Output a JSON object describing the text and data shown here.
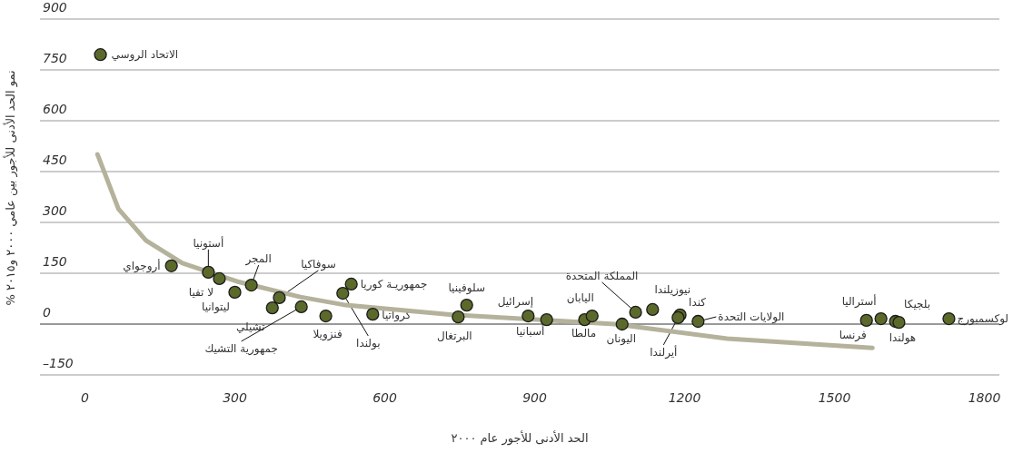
{
  "chart_data": {
    "type": "scatter",
    "xlabel": "الحد الأدنى للأجور عام ٢٠٠٠",
    "ylabel": "نمو الحد الأدنى للأجور بين عامي ٢٠٠٠ و٢٠١٥ %",
    "xlim": [
      -90,
      1830
    ],
    "ylim": [
      -150,
      900
    ],
    "xticks": [
      0,
      300,
      600,
      900,
      1200,
      1500,
      1800
    ],
    "yticks": [
      {
        "value": -150,
        "label": "–150"
      },
      0,
      150,
      300,
      450,
      600,
      750,
      900
    ],
    "grid": "y",
    "series": [
      {
        "marker": "circle",
        "color": "#5b6a2b",
        "x": [
          31,
          173,
          247,
          269,
          300,
          333,
          375,
          389,
          433,
          482,
          516,
          533,
          576,
          747,
          764,
          887,
          924,
          1000,
          1015,
          1075,
          1102,
          1136,
          1191,
          1187,
          1227,
          1564,
          1593,
          1622,
          1629,
          1729
        ],
        "values": [
          795,
          172,
          153,
          134,
          94,
          115,
          48,
          78,
          51,
          24,
          91,
          118,
          29,
          21,
          56,
          24,
          13,
          13,
          24,
          0,
          35,
          43,
          27,
          19,
          8,
          11,
          16,
          8,
          5,
          16
        ]
      },
      {
        "type": "line",
        "color": "#b5b29c",
        "x": [
          25,
          67,
          122,
          195,
          304,
          431,
          522,
          740,
          1060,
          1285,
          1576
        ],
        "values": [
          501,
          340,
          247,
          180,
          126,
          80,
          56,
          27,
          0,
          -43,
          -70
        ]
      }
    ],
    "annotations": [
      {
        "text": "الاتحاد الروسي",
        "x": 31,
        "y": 795
      },
      {
        "text": "أروجواي",
        "x": 173,
        "y": 172
      },
      {
        "text": "أستونيا",
        "x": 247,
        "y": 153
      },
      {
        "text": "لا تفيا",
        "x": 269,
        "y": 134
      },
      {
        "text": "ليتوانيا",
        "x": 300,
        "y": 94
      },
      {
        "text": "المجر",
        "x": 333,
        "y": 115
      },
      {
        "text": "تشيلي",
        "x": 375,
        "y": 48
      },
      {
        "text": "سوفاكيا",
        "x": 389,
        "y": 78
      },
      {
        "text": "جمهورية التشيك",
        "x": 433,
        "y": 51
      },
      {
        "text": "فنزويلا",
        "x": 482,
        "y": 24
      },
      {
        "text": "بولندا",
        "x": 516,
        "y": 91
      },
      {
        "text": "جمهوريـة كوريا",
        "x": 533,
        "y": 118
      },
      {
        "text": "كرواتيا",
        "x": 576,
        "y": 29
      },
      {
        "text": "البرتغال",
        "x": 747,
        "y": 21
      },
      {
        "text": "سلوفينيا",
        "x": 764,
        "y": 56
      },
      {
        "text": "إسرائيل",
        "x": 887,
        "y": 24
      },
      {
        "text": "أسبانيا",
        "x": 924,
        "y": 13
      },
      {
        "text": "مالطا",
        "x": 1000,
        "y": 13
      },
      {
        "text": "اليابان",
        "x": 1015,
        "y": 24
      },
      {
        "text": "اليونان",
        "x": 1075,
        "y": 0
      },
      {
        "text": "المملكة المتحدة",
        "x": 1102,
        "y": 35
      },
      {
        "text": "نيوزيلندا",
        "x": 1136,
        "y": 43
      },
      {
        "text": "كندا",
        "x": 1191,
        "y": 27
      },
      {
        "text": "أيرلندا",
        "x": 1187,
        "y": 19
      },
      {
        "text": "الولايات التحدة",
        "x": 1227,
        "y": 8
      },
      {
        "text": "فرنسا",
        "x": 1564,
        "y": 11
      },
      {
        "text": "أستراليا",
        "x": 1593,
        "y": 16
      },
      {
        "text": "بلجيكا",
        "x": 1622,
        "y": 8
      },
      {
        "text": "هولندا",
        "x": 1629,
        "y": 5
      },
      {
        "text": "لوكسمبورج",
        "x": 1729,
        "y": 16
      }
    ]
  }
}
